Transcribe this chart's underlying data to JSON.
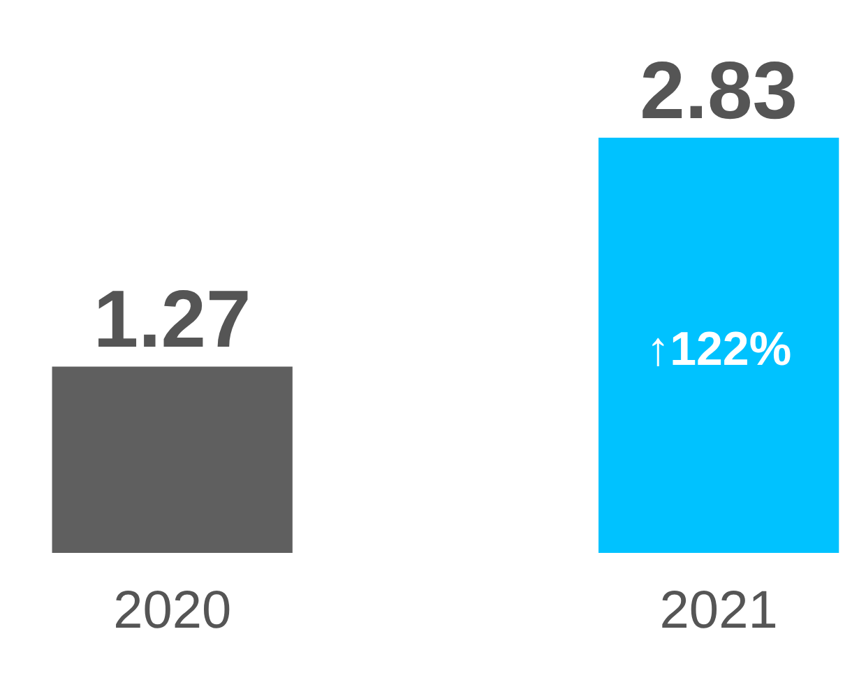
{
  "chart_data": {
    "type": "bar",
    "categories": [
      "2020",
      "2021"
    ],
    "values": [
      1.27,
      2.83
    ],
    "colors": [
      "#5f5f5f",
      "#00c2ff"
    ],
    "data_labels": true,
    "annotations": [
      "↑122%"
    ]
  }
}
